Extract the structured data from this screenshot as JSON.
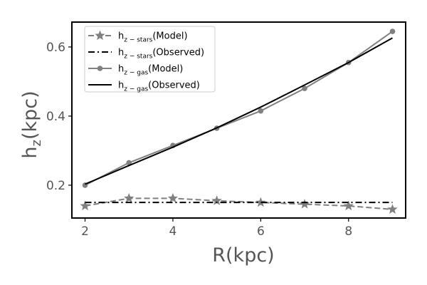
{
  "chart_data": {
    "type": "line",
    "xlabel": {
      "main": "R(kpc)"
    },
    "ylabel": {
      "main": "h",
      "sub": "z",
      "suffix": "(kpc)"
    },
    "xlim": [
      1.7,
      9.3
    ],
    "ylim": [
      0.105,
      0.672
    ],
    "xticks": [
      2,
      4,
      6,
      8
    ],
    "xtick_labels": [
      "2",
      "4",
      "6",
      "8"
    ],
    "yticks": [
      0.2,
      0.4,
      0.6
    ],
    "ytick_labels": [
      "0.2",
      "0.4",
      "0.6"
    ],
    "grid": false,
    "legend_position": "top-left",
    "series": [
      {
        "name": {
          "main": "h",
          "sub": "z − stars",
          "suffix": "(Model)"
        },
        "color": "#808080",
        "line_style": "dashed",
        "marker": "star",
        "x": [
          2,
          3,
          4,
          5,
          6,
          7,
          8,
          9
        ],
        "y": [
          0.14,
          0.162,
          0.162,
          0.155,
          0.15,
          0.145,
          0.14,
          0.13
        ]
      },
      {
        "name": {
          "main": "h",
          "sub": "z − stars",
          "suffix": "(Observed)"
        },
        "color": "#000000",
        "line_style": "dashdot",
        "marker": "none",
        "x": [
          2,
          9
        ],
        "y": [
          0.15,
          0.15
        ]
      },
      {
        "name": {
          "main": "h",
          "sub": "z − gas",
          "suffix": "(Model)"
        },
        "color": "#808080",
        "line_style": "solid",
        "marker": "circle",
        "x": [
          2,
          3,
          4,
          5,
          6,
          7,
          8,
          9
        ],
        "y": [
          0.2,
          0.265,
          0.315,
          0.365,
          0.415,
          0.48,
          0.555,
          0.645
        ]
      },
      {
        "name": {
          "main": "h",
          "sub": "z − gas",
          "suffix": "(Observed)"
        },
        "color": "#000000",
        "line_style": "solid",
        "marker": "none",
        "x": [
          2,
          3,
          4,
          5,
          6,
          7,
          8,
          9
        ],
        "y": [
          0.203,
          0.257,
          0.31,
          0.366,
          0.426,
          0.49,
          0.555,
          0.626
        ]
      }
    ]
  }
}
